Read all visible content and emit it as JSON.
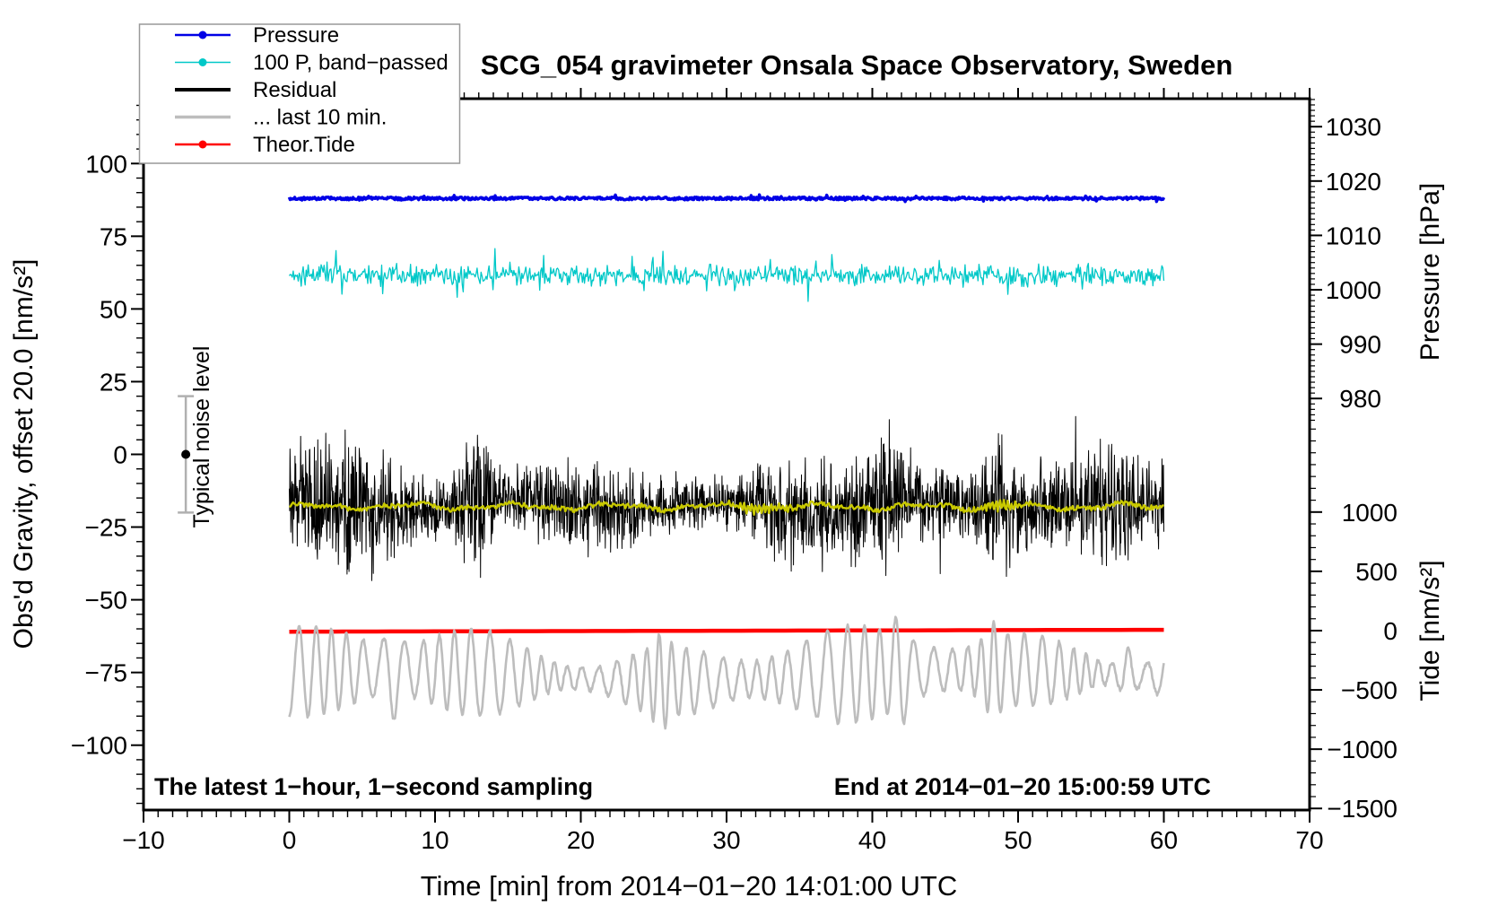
{
  "title": "SCG_054 gravimeter Onsala Space Observatory, Sweden",
  "legend": {
    "border_color": "#999999",
    "background": "#ffffff",
    "items": [
      {
        "label": "Pressure",
        "color": "#0000e6",
        "sample_width": 2.5,
        "marker": true
      },
      {
        "label": "100 P, band−passed",
        "color": "#00c8c8",
        "sample_width": 1.5,
        "marker": true
      },
      {
        "label": "Residual",
        "color": "#000000",
        "sample_width": 4.0,
        "marker": false
      },
      {
        "label": "... last 10 min.",
        "color": "#bdbdbd",
        "sample_width": 3.5,
        "marker": false
      },
      {
        "label": "Theor.Tide",
        "color": "#ff0000",
        "sample_width": 2.5,
        "marker": true
      }
    ]
  },
  "chart_data": {
    "type": "line",
    "title": "SCG_054 gravimeter Onsala Space Observatory, Sweden",
    "x_axis": {
      "label": "Time [min] from 2014−01−20 14:01:00 UTC",
      "range": [
        -10,
        70
      ],
      "major_tick_values": [
        -10,
        0,
        10,
        20,
        30,
        40,
        50,
        60,
        70
      ],
      "tick_labels": [
        "−10",
        "0",
        "10",
        "20",
        "30",
        "40",
        "50",
        "60",
        "70"
      ],
      "minor_tick_step": 1
    },
    "left_axis": {
      "label": "Obs'd Gravity, offset 20.0 [nm/s²]",
      "range": [
        -122.3,
        122.3
      ],
      "major_tick_values": [
        -100,
        -75,
        -50,
        -25,
        0,
        25,
        50,
        75,
        100
      ],
      "tick_labels": [
        "−100",
        "−75",
        "−50",
        "−25",
        "0",
        "25",
        "50",
        "75",
        "100"
      ],
      "minor_tick_step": 5
    },
    "right_pressure_axis": {
      "label": "Pressure [hPa]",
      "range": [
        904.3,
        1035.15
      ],
      "major_tick_values": [
        980,
        990,
        1000,
        1010,
        1020,
        1030
      ],
      "tick_labels": [
        "980",
        "990",
        "1000",
        "1010",
        "1020",
        "1030"
      ],
      "minor_tick_step": 1,
      "minor_tick_range": [
        976,
        1035
      ]
    },
    "right_tide_axis": {
      "label": "Tide [nm/s²]",
      "range": [
        -1513.4,
        4486.6
      ],
      "major_tick_values": [
        -1500,
        -1000,
        -500,
        0,
        500,
        1000
      ],
      "tick_labels": [
        "−1500",
        "−1000",
        "−500",
        "0",
        "500",
        "1000"
      ],
      "minor_tick_step": 100,
      "minor_tick_range": [
        -1500,
        1700
      ]
    },
    "series": [
      {
        "key": "pressure",
        "name": "Pressure",
        "axis": "pressure",
        "color": "#0000e6",
        "width": 3.5,
        "t_range": [
          0,
          60
        ],
        "mean_hPa": 1016.8,
        "noise_hPa": 0.25
      },
      {
        "key": "bandpassed",
        "name": "100 P, band−passed",
        "axis": "gravity",
        "color": "#00c8c8",
        "width": 1.3,
        "t_range": [
          0,
          60
        ],
        "mean": 61.5,
        "typical_dev": 3.4,
        "spike_dev": 16,
        "clamp": [
          46.5,
          72.5
        ]
      },
      {
        "key": "residual",
        "name": "Residual",
        "axis": "gravity",
        "color": "#000000",
        "width": 1,
        "t_range": [
          0,
          60
        ],
        "mean": -17.6,
        "base_amplitude": 13,
        "bursts": [
          [
            5.2,
            1.8,
            5
          ],
          [
            12.6,
            1.1,
            14
          ],
          [
            13.5,
            0.6,
            8
          ],
          [
            23,
            2,
            3
          ],
          [
            33.5,
            1.2,
            5
          ],
          [
            41,
            1,
            4
          ],
          [
            48.7,
            0.9,
            11
          ],
          [
            56.5,
            1.5,
            3
          ]
        ],
        "clamp": [
          -59,
          24
        ]
      },
      {
        "key": "residual_smooth",
        "name": "Residual smoothed",
        "axis": "gravity",
        "color": "#c9c900",
        "width": 2.4,
        "t_range": [
          0,
          60
        ],
        "mean": -18,
        "typical_dev": 0.8,
        "wiggle_bursts": [
          [
            32.5,
            2,
            1.5
          ],
          [
            48.5,
            1.5,
            1.7
          ]
        ]
      },
      {
        "key": "tide",
        "name": "Theor.Tide",
        "axis": "tide",
        "color": "#ff0000",
        "width": 4.5,
        "t_range": [
          0,
          60
        ],
        "start_value": -9,
        "end_value": 7
      },
      {
        "key": "last10",
        "name": "... last 10 min.",
        "axis": "gravity",
        "color": "#bdbdbd",
        "width": 2.6,
        "t_range": [
          0,
          60
        ],
        "mean": -76,
        "base_amplitude": 10,
        "period_min": 1.15,
        "amplitude_bursts": [
          [
            7.1,
            0.5,
            9
          ],
          [
            25.5,
            0.6,
            5
          ],
          [
            41.9,
            0.6,
            8
          ],
          [
            48.3,
            0.7,
            6
          ],
          [
            57.5,
            0.5,
            6
          ]
        ],
        "clamp": [
          -96.5,
          -51
        ]
      }
    ],
    "noise_marker": {
      "label": "Typical noise level",
      "t": -7.1,
      "center_value": 0,
      "half_range": 20,
      "bar_color": "#b0b0b0",
      "dot_color": "#000000"
    },
    "annotations": {
      "bottom_left": "The latest 1−hour, 1−second sampling",
      "bottom_right": "End at 2014−01−20 15:00:59 UTC"
    }
  }
}
